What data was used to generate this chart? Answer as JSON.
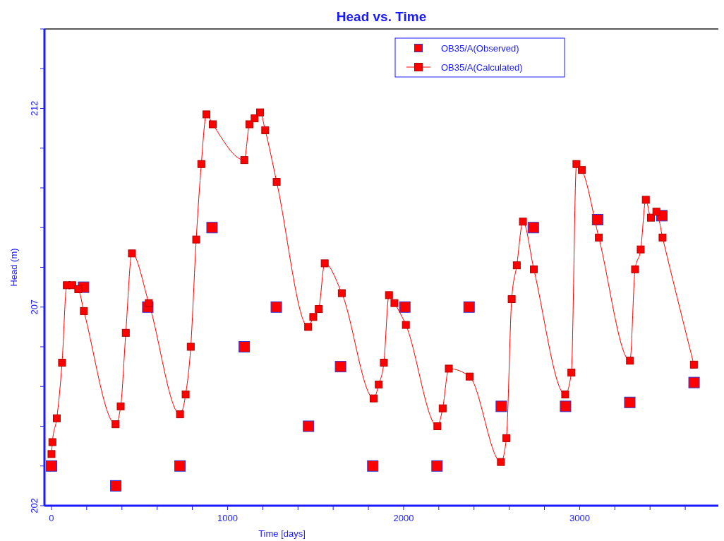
{
  "chart_data": {
    "type": "scatter",
    "title": "Head vs. Time",
    "xlabel": "Time  [days]",
    "ylabel": "Head (m)",
    "xlim": [
      -40,
      3780
    ],
    "ylim": [
      202,
      214
    ],
    "xticks": [
      0,
      {
        "value": 200,
        "label": null
      },
      {
        "value": 400,
        "label": null
      },
      {
        "value": 600,
        "label": null
      },
      {
        "value": 800,
        "label": null
      },
      1000,
      {
        "value": 1200,
        "label": null
      },
      {
        "value": 1400,
        "label": null
      },
      {
        "value": 1600,
        "label": null
      },
      {
        "value": 1800,
        "label": null
      },
      2000,
      {
        "value": 2200,
        "label": null
      },
      {
        "value": 2400,
        "label": null
      },
      {
        "value": 2600,
        "label": null
      },
      {
        "value": 2800,
        "label": null
      },
      3000,
      {
        "value": 3200,
        "label": null
      },
      {
        "value": 3400,
        "label": null
      },
      {
        "value": 3600,
        "label": null
      }
    ],
    "yticks": [
      202,
      {
        "value": 203,
        "label": null
      },
      {
        "value": 204,
        "label": null
      },
      {
        "value": 205,
        "label": null
      },
      {
        "value": 206,
        "label": null
      },
      207,
      {
        "value": 208,
        "label": null
      },
      {
        "value": 209,
        "label": null
      },
      {
        "value": 210,
        "label": null
      },
      {
        "value": 211,
        "label": null
      },
      212,
      {
        "value": 213,
        "label": null
      },
      {
        "value": 214,
        "label": null
      }
    ],
    "grid": false,
    "legend": "top",
    "marker": "square",
    "series": [
      {
        "name": "OB35/A(Observed)",
        "color": "#ff0000",
        "x": [
          0,
          182,
          365,
          547,
          730,
          912,
          1095,
          1277,
          1460,
          1642,
          1825,
          2007,
          2190,
          2372,
          2555,
          2737,
          2920,
          3102,
          3285,
          3467,
          3650
        ],
        "values": [
          203,
          207.5,
          202.5,
          207,
          203,
          209,
          206,
          207,
          204,
          205.5,
          203,
          207,
          203,
          207,
          204.5,
          209,
          204.5,
          209.2,
          204.6,
          209.3,
          205.1
        ]
      },
      {
        "name": "OB35/A(Calculated)",
        "type": "line",
        "color": "#ff0000",
        "x": [
          0,
          5,
          30,
          60,
          87,
          118,
          152,
          184,
          364,
          393,
          422,
          457,
          553,
          730,
          762,
          791,
          822,
          851,
          880,
          916,
          1095,
          1124,
          1154,
          1185,
          1214,
          1279,
          1458,
          1487,
          1518,
          1552,
          1649,
          1830,
          1859,
          1888,
          1917,
          1948,
          2013,
          2192,
          2222,
          2257,
          2375,
          2553,
          2584,
          2614,
          2643,
          2678,
          2740,
          2918,
          2953,
          2982,
          3013,
          3109,
          3286,
          3315,
          3347,
          3376,
          3405,
          3436,
          3471,
          3649
        ],
        "values": [
          203.3,
          203.6,
          204.2,
          205.6,
          207.55,
          207.55,
          207.45,
          206.9,
          204.05,
          204.5,
          206.35,
          208.35,
          207.1,
          204.3,
          204.8,
          206,
          208.7,
          210.6,
          211.85,
          211.6,
          210.7,
          211.6,
          211.75,
          211.9,
          211.45,
          210.15,
          206.5,
          206.75,
          206.95,
          208.1,
          207.35,
          204.7,
          205.05,
          205.6,
          207.3,
          207.1,
          206.55,
          204,
          204.45,
          205.45,
          205.25,
          203.1,
          203.7,
          207.2,
          208.05,
          209.15,
          207.95,
          204.8,
          205.35,
          210.6,
          210.45,
          208.75,
          205.65,
          207.95,
          208.45,
          209.7,
          209.25,
          209.4,
          208.75,
          205.55
        ]
      }
    ]
  }
}
